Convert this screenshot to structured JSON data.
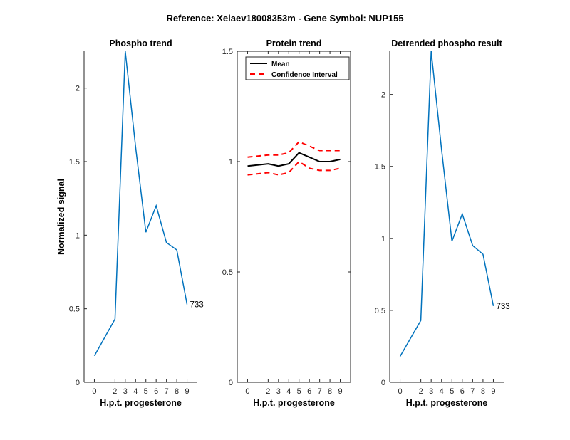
{
  "figure": {
    "title": "Reference:  Xelaev18008353m - Gene Symbol:  NUP155"
  },
  "chart_data": [
    {
      "type": "line",
      "title": "Phospho trend",
      "xlabel": "H.p.t. progesterone",
      "ylabel": "Normalized signal",
      "x": [
        0,
        2,
        3,
        4,
        5,
        6,
        7,
        8,
        9
      ],
      "x_ticks": [
        "0",
        "2",
        "3",
        "4",
        "5",
        "6",
        "7",
        "8",
        "9"
      ],
      "xlim": [
        -1,
        10
      ],
      "ylim": [
        0,
        2.25
      ],
      "y_ticks": [
        0,
        0.5,
        1,
        1.5,
        2
      ],
      "y_tick_labels": [
        "0",
        "0.5",
        "1",
        "1.5",
        "2"
      ],
      "series": [
        {
          "color": "#0072BD",
          "style": "solid",
          "values": [
            0.18,
            0.43,
            2.25,
            1.6,
            1.02,
            1.2,
            0.95,
            0.9,
            0.53
          ]
        }
      ],
      "annotations": [
        {
          "text": "733",
          "x": 9,
          "y": 0.53
        }
      ]
    },
    {
      "type": "line",
      "title": "Protein trend",
      "xlabel": "H.p.t. progesterone",
      "ylabel": "",
      "x": [
        0,
        2,
        3,
        4,
        5,
        6,
        7,
        8,
        9
      ],
      "x_ticks": [
        "0",
        "2",
        "3",
        "4",
        "5",
        "6",
        "7",
        "8",
        "9"
      ],
      "xlim": [
        -1,
        10
      ],
      "ylim": [
        0,
        1.5
      ],
      "y_ticks": [
        0,
        0.5,
        1,
        1.5
      ],
      "y_tick_labels": [
        "0",
        "0.5",
        "1",
        "1.5"
      ],
      "boxed": true,
      "legend_position": "top-left",
      "series": [
        {
          "name": "Mean",
          "color": "#000000",
          "style": "solid",
          "legend": true,
          "values": [
            0.98,
            0.99,
            0.98,
            0.99,
            1.04,
            1.02,
            1.0,
            1.0,
            1.01
          ]
        },
        {
          "name": "Confidence Interval",
          "color": "#FF0000",
          "style": "dashed",
          "legend": true,
          "values": [
            1.02,
            1.03,
            1.03,
            1.04,
            1.09,
            1.07,
            1.05,
            1.05,
            1.05
          ]
        },
        {
          "color": "#FF0000",
          "style": "dashed",
          "legend": false,
          "values": [
            0.94,
            0.95,
            0.94,
            0.95,
            1.0,
            0.97,
            0.96,
            0.96,
            0.97
          ]
        }
      ]
    },
    {
      "type": "line",
      "title": "Detrended phospho result",
      "xlabel": "H.p.t. progesterone",
      "ylabel": "",
      "x": [
        0,
        2,
        3,
        4,
        5,
        6,
        7,
        8,
        9
      ],
      "x_ticks": [
        "0",
        "2",
        "3",
        "4",
        "5",
        "6",
        "7",
        "8",
        "9"
      ],
      "xlim": [
        -1,
        10
      ],
      "ylim": [
        0,
        2.3
      ],
      "y_ticks": [
        0,
        0.5,
        1,
        1.5,
        2
      ],
      "y_tick_labels": [
        "0",
        "0.5",
        "1",
        "1.5",
        "2"
      ],
      "series": [
        {
          "color": "#0072BD",
          "style": "solid",
          "values": [
            0.18,
            0.43,
            2.3,
            1.62,
            0.98,
            1.17,
            0.95,
            0.89,
            0.53
          ]
        }
      ],
      "annotations": [
        {
          "text": "733",
          "x": 9,
          "y": 0.53
        }
      ]
    }
  ]
}
